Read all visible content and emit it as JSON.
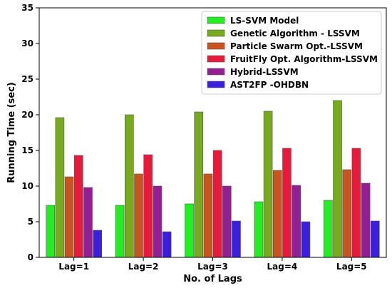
{
  "chart_data": {
    "type": "bar",
    "title": "",
    "xlabel": "No. of Lags",
    "ylabel": "Running Time (sec)",
    "categories": [
      "Lag=1",
      "Lag=2",
      "Lag=3",
      "Lag=4",
      "Lag=5"
    ],
    "ylim": [
      0,
      35
    ],
    "yticks": [
      0,
      5,
      10,
      15,
      20,
      25,
      30,
      35
    ],
    "grid": false,
    "legend_position": "top-right",
    "series": [
      {
        "name": "LS-SVM Model",
        "color": "#22ee22",
        "values": [
          7.3,
          7.3,
          7.5,
          7.8,
          8.0
        ]
      },
      {
        "name": "Genetic Algorithm - LSSVM",
        "color": "#77aa1f",
        "values": [
          19.6,
          20.0,
          20.4,
          20.5,
          22.0
        ]
      },
      {
        "name": "Particle Swarm Opt.-LSSVM",
        "color": "#c8541f",
        "values": [
          11.3,
          11.7,
          11.7,
          12.2,
          12.3
        ]
      },
      {
        "name": "FruitFly Opt. Algorithm-LSSVM",
        "color": "#e8193a",
        "values": [
          14.3,
          14.4,
          15.0,
          15.3,
          15.3
        ]
      },
      {
        "name": "Hybrid-LSSVM",
        "color": "#931f92",
        "values": [
          9.8,
          10.0,
          10.0,
          10.1,
          10.4
        ]
      },
      {
        "name": "AST2FP -OHDBN",
        "color": "#3a1fe0",
        "values": [
          3.8,
          3.6,
          5.1,
          5.0,
          5.1
        ]
      }
    ]
  }
}
